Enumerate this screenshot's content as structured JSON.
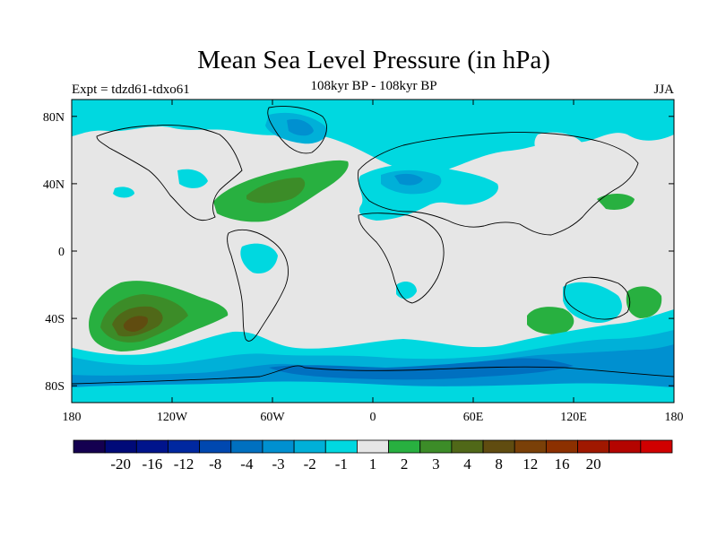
{
  "title": "Mean Sea Level Pressure (in hPa)",
  "experiment": "Expt = tdzd61-tdxo61",
  "period": "108kyr BP - 108kyr BP",
  "season": "JJA",
  "axes": {
    "x_ticks": [
      {
        "lon": -180,
        "label": "180"
      },
      {
        "lon": -120,
        "label": "120W"
      },
      {
        "lon": -60,
        "label": "60W"
      },
      {
        "lon": 0,
        "label": "0"
      },
      {
        "lon": 60,
        "label": "60E"
      },
      {
        "lon": 120,
        "label": "120E"
      },
      {
        "lon": 180,
        "label": "180"
      }
    ],
    "y_ticks": [
      {
        "lat": 80,
        "label": "80N"
      },
      {
        "lat": 40,
        "label": "40N"
      },
      {
        "lat": 0,
        "label": "0"
      },
      {
        "lat": -40,
        "label": "40S"
      },
      {
        "lat": -80,
        "label": "80S"
      }
    ]
  },
  "colors": {
    "background": "#e6e6e6",
    "coast": "#000000",
    "neg1": "#00d8e0",
    "neg2": "#00b0d8",
    "neg3": "#0090d0",
    "neg4": "#0070c0",
    "pos1": "#28b040",
    "pos2": "#3c8c28",
    "pos3": "#506818",
    "pos4": "#604c10"
  },
  "colorbar": {
    "colors": [
      "#140050",
      "#000a78",
      "#00148c",
      "#0028a0",
      "#0048b0",
      "#0070c0",
      "#0090d0",
      "#00b0d8",
      "#00d8e0",
      "#e6e6e6",
      "#28b040",
      "#3c8c28",
      "#506818",
      "#604c10",
      "#7a4008",
      "#8c3000",
      "#a01800",
      "#b40400",
      "#d00000"
    ],
    "labels": [
      "-20",
      "-16",
      "-12",
      "-8",
      "-4",
      "-3",
      "-2",
      "-1",
      "1",
      "2",
      "3",
      "4",
      "8",
      "12",
      "16",
      "20"
    ]
  }
}
